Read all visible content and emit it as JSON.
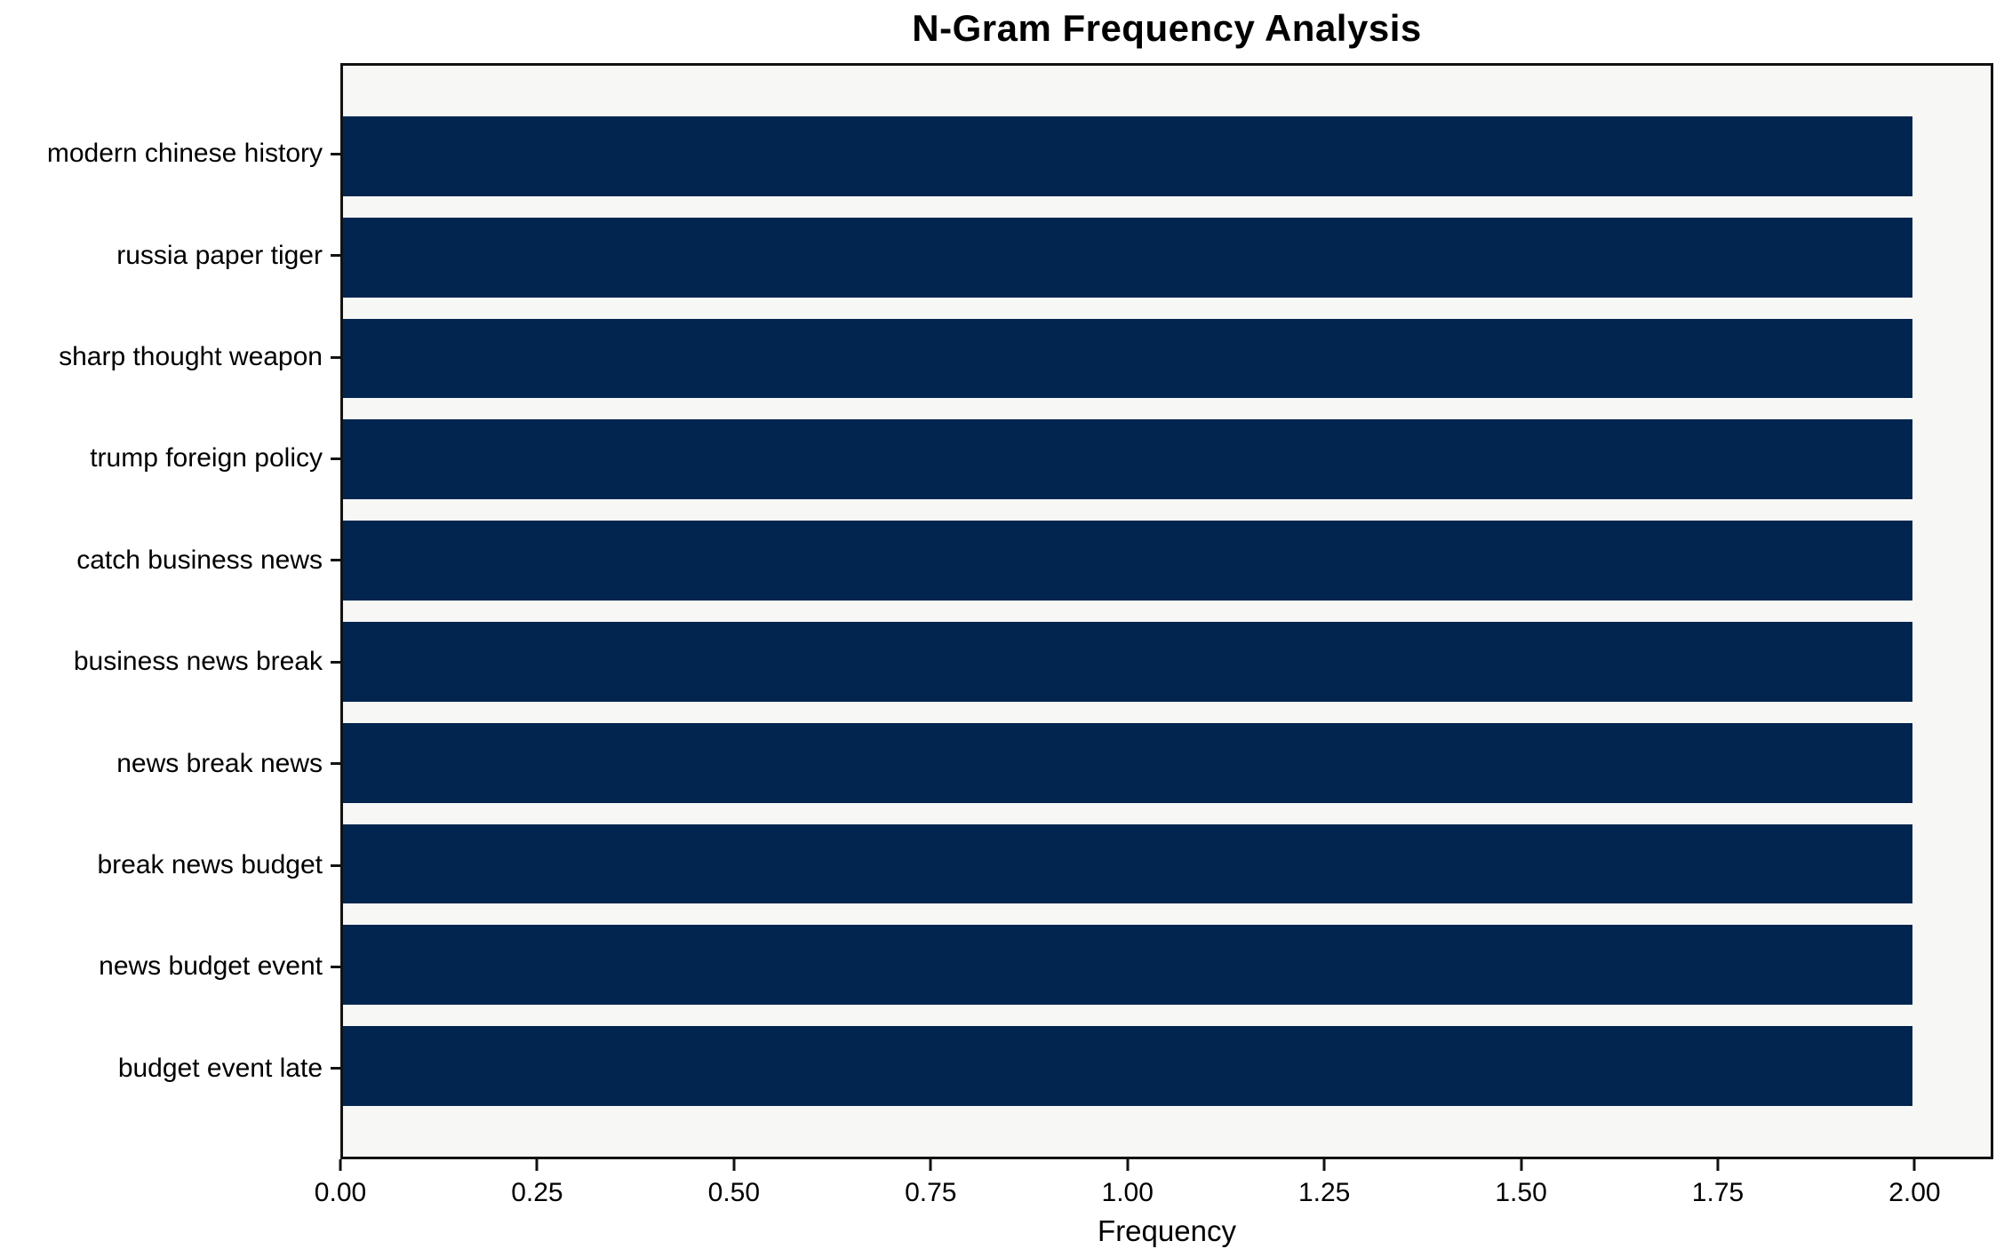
{
  "chart_data": {
    "type": "bar",
    "orientation": "horizontal",
    "title": "N-Gram Frequency Analysis",
    "xlabel": "Frequency",
    "ylabel": "",
    "categories": [
      "modern chinese history",
      "russia paper tiger",
      "sharp thought weapon",
      "trump foreign policy",
      "catch business news",
      "business news break",
      "news break news",
      "break news budget",
      "news budget event",
      "budget event late"
    ],
    "values": [
      2,
      2,
      2,
      2,
      2,
      2,
      2,
      2,
      2,
      2
    ],
    "xlim": [
      0,
      2.1
    ],
    "xtick_values": [
      0,
      0.25,
      0.5,
      0.75,
      1.0,
      1.25,
      1.5,
      1.75,
      2.0
    ],
    "xtick_labels": [
      "0.00",
      "0.25",
      "0.50",
      "0.75",
      "1.00",
      "1.25",
      "1.50",
      "1.75",
      "2.00"
    ],
    "bar_color": "#02254f",
    "plot_background": "#f7f7f6",
    "figure_background": "#ffffff",
    "axis_color": "#121212",
    "grid": false,
    "legend_position": "none"
  }
}
